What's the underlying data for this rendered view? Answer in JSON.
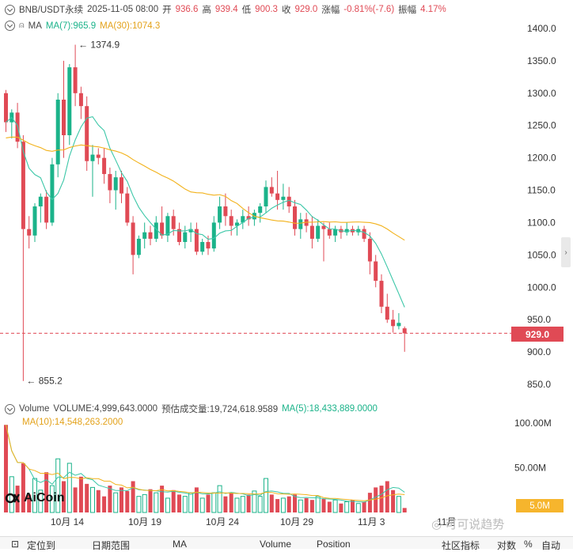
{
  "header": {
    "symbol": "BNB/USDT永续",
    "datetime": "2025-11-05 08:00",
    "open_label": "开",
    "open": "936.6",
    "high_label": "高",
    "high": "939.4",
    "low_label": "低",
    "low": "900.3",
    "close_label": "收",
    "close": "929.0",
    "change_label": "涨幅",
    "change": "-0.81%(-7.6)",
    "amplitude_label": "振幅",
    "amplitude": "4.17%"
  },
  "ma_row": {
    "label": "MA",
    "ma7": "MA(7):965.9",
    "ma30": "MA(30):1074.3"
  },
  "volume_row": {
    "label": "Volume",
    "volume": "VOLUME:4,999,643.0000",
    "est": "预估成交量:19,724,618.9589",
    "ma5": "MA(5):18,433,889.0000",
    "ma10": "MA(10):14,548,263.2000"
  },
  "annotations": {
    "high": "1374.9",
    "low": "855.2"
  },
  "price_ticks": [
    "1400.0",
    "1350.0",
    "1300.0",
    "1250.0",
    "1200.0",
    "1150.0",
    "1100.0",
    "1050.0",
    "1000.0",
    "950.0",
    "900.0",
    "850.0"
  ],
  "current_price": "929.0",
  "volume_ticks": [
    "100.00M",
    "50.00M"
  ],
  "current_volume": "5.0M",
  "date_ticks": [
    "10月 14",
    "10月 19",
    "10月 24",
    "10月 29",
    "11月 3",
    "11月"
  ],
  "logo": "AiCoin",
  "watermark": "可可说趋势",
  "bottom_bar": [
    "定位到",
    "日期范围",
    "MA",
    "Volume",
    "Position",
    "社区指标",
    "对数",
    "%",
    "自动"
  ],
  "colors": {
    "up": "#1bb38a",
    "down": "#e04a55",
    "ma7": "#3cc7a8",
    "ma30": "#f2b21b",
    "ma10_vol": "#f2b21b"
  },
  "chart_data": {
    "type": "candlestick",
    "candles": [
      [
        1300,
        1305,
        1240,
        1255
      ],
      [
        1255,
        1275,
        1230,
        1270
      ],
      [
        1270,
        1285,
        1215,
        1225
      ],
      [
        1225,
        1235,
        855.2,
        1090
      ],
      [
        1090,
        1110,
        1060,
        1080
      ],
      [
        1080,
        1130,
        1070,
        1125
      ],
      [
        1125,
        1145,
        1100,
        1140
      ],
      [
        1140,
        1150,
        1090,
        1100
      ],
      [
        1100,
        1200,
        1095,
        1190
      ],
      [
        1190,
        1300,
        1170,
        1290
      ],
      [
        1290,
        1350,
        1200,
        1235
      ],
      [
        1235,
        1345,
        1220,
        1340
      ],
      [
        1340,
        1374.9,
        1280,
        1300
      ],
      [
        1300,
        1310,
        1260,
        1280
      ],
      [
        1280,
        1295,
        1180,
        1195
      ],
      [
        1195,
        1220,
        1140,
        1205
      ],
      [
        1205,
        1215,
        1190,
        1200
      ],
      [
        1200,
        1215,
        1160,
        1175
      ],
      [
        1175,
        1185,
        1130,
        1150
      ],
      [
        1150,
        1180,
        1120,
        1170
      ],
      [
        1170,
        1180,
        1130,
        1145
      ],
      [
        1145,
        1155,
        1095,
        1100
      ],
      [
        1100,
        1110,
        1020,
        1050
      ],
      [
        1050,
        1080,
        1045,
        1075
      ],
      [
        1075,
        1100,
        1060,
        1085
      ],
      [
        1085,
        1095,
        1065,
        1075
      ],
      [
        1075,
        1110,
        1070,
        1100
      ],
      [
        1100,
        1125,
        1075,
        1080
      ],
      [
        1080,
        1115,
        1070,
        1110
      ],
      [
        1110,
        1120,
        1080,
        1090
      ],
      [
        1090,
        1100,
        1065,
        1070
      ],
      [
        1070,
        1095,
        1060,
        1085
      ],
      [
        1085,
        1100,
        1070,
        1090
      ],
      [
        1090,
        1100,
        1050,
        1055
      ],
      [
        1055,
        1075,
        1050,
        1070
      ],
      [
        1070,
        1080,
        1050,
        1060
      ],
      [
        1060,
        1110,
        1055,
        1100
      ],
      [
        1100,
        1140,
        1090,
        1125
      ],
      [
        1125,
        1145,
        1095,
        1110
      ],
      [
        1110,
        1120,
        1080,
        1095
      ],
      [
        1095,
        1105,
        1080,
        1100
      ],
      [
        1100,
        1120,
        1090,
        1110
      ],
      [
        1110,
        1125,
        1095,
        1105
      ],
      [
        1105,
        1120,
        1095,
        1115
      ],
      [
        1115,
        1130,
        1100,
        1125
      ],
      [
        1125,
        1165,
        1115,
        1155
      ],
      [
        1155,
        1170,
        1140,
        1145
      ],
      [
        1145,
        1180,
        1120,
        1135
      ],
      [
        1135,
        1160,
        1120,
        1140
      ],
      [
        1140,
        1155,
        1115,
        1125
      ],
      [
        1125,
        1135,
        1080,
        1090
      ],
      [
        1090,
        1115,
        1075,
        1105
      ],
      [
        1105,
        1115,
        1085,
        1095
      ],
      [
        1095,
        1110,
        1060,
        1075
      ],
      [
        1075,
        1105,
        1070,
        1095
      ],
      [
        1095,
        1100,
        1040,
        1090
      ],
      [
        1090,
        1100,
        1075,
        1080
      ],
      [
        1080,
        1095,
        1070,
        1090
      ],
      [
        1090,
        1095,
        1075,
        1085
      ],
      [
        1085,
        1100,
        1080,
        1090
      ],
      [
        1090,
        1095,
        1080,
        1085
      ],
      [
        1085,
        1095,
        1080,
        1090
      ],
      [
        1090,
        1095,
        1070,
        1075
      ],
      [
        1075,
        1085,
        1020,
        1040
      ],
      [
        1040,
        1050,
        1000,
        1010
      ],
      [
        1010,
        1020,
        960,
        970
      ],
      [
        970,
        990,
        945,
        950
      ],
      [
        950,
        965,
        930,
        940
      ],
      [
        940,
        960,
        935,
        945
      ],
      [
        936.6,
        939.4,
        900.3,
        929.0
      ]
    ]
  }
}
